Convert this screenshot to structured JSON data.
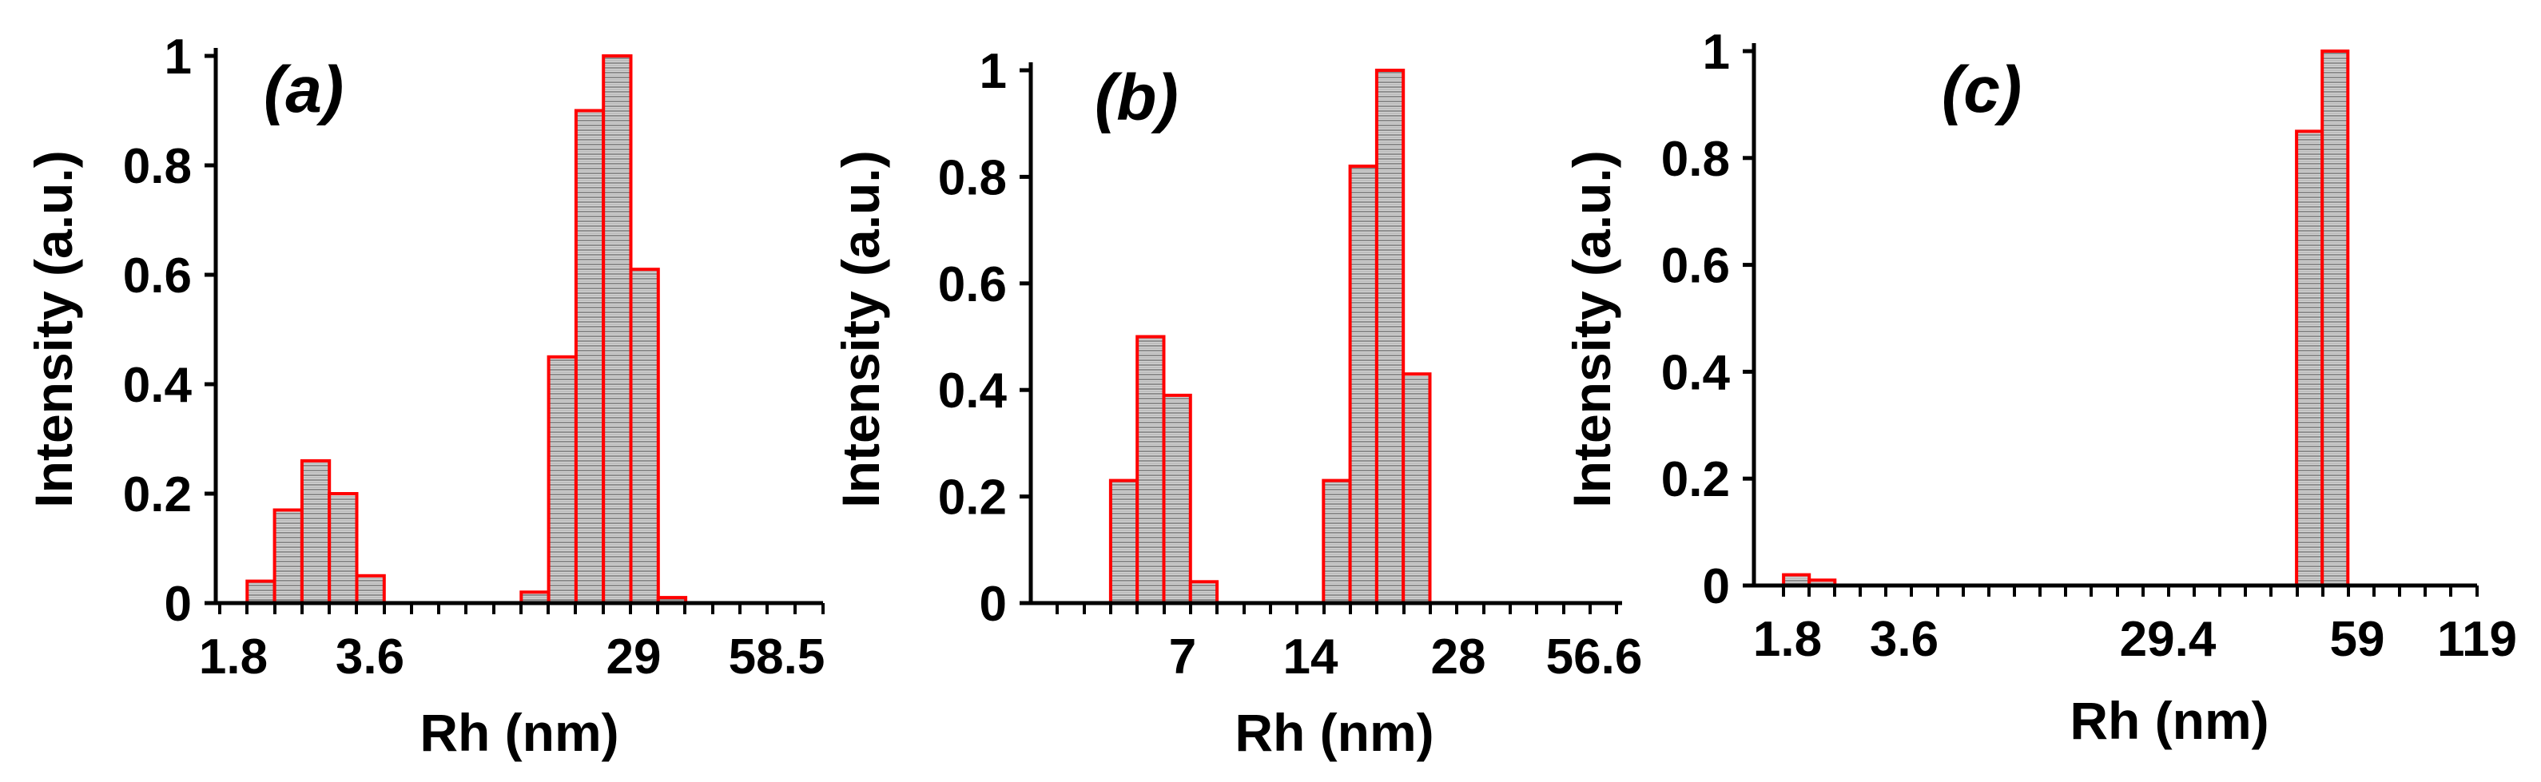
{
  "colors": {
    "bar_edge": "#ff0000",
    "bar_fill": "#cfcfcf",
    "bar_hatch": "#7a7a7a",
    "axis": "#000000",
    "text": "#000000"
  },
  "chart_data": [
    {
      "type": "bar",
      "panel_label": "(a)",
      "xlabel": "Rh (nm)",
      "ylabel": "Intensity (a.u.)",
      "ylim": [
        0,
        1
      ],
      "yticks": [
        "0",
        "0.2",
        "0.4",
        "0.6",
        "0.8",
        "1"
      ],
      "xtick_labels": [
        "1.8",
        "3.6",
        "29",
        "58.5"
      ],
      "bin_count": 20,
      "values": [
        0,
        0.04,
        0.17,
        0.26,
        0.2,
        0.05,
        0,
        0,
        0,
        0,
        0,
        0.02,
        0.45,
        0.9,
        1.0,
        0.61,
        0.01,
        0,
        0,
        0
      ]
    },
    {
      "type": "bar",
      "panel_label": "(b)",
      "xlabel": "Rh (nm)",
      "ylabel": "Intensity (a.u.)",
      "ylim": [
        0,
        1
      ],
      "yticks": [
        "0",
        "0.2",
        "0.4",
        "0.6",
        "0.8",
        "1"
      ],
      "xtick_labels": [
        "7",
        "14",
        "28",
        "56.6"
      ],
      "bin_count": 20,
      "values": [
        0,
        0,
        0,
        0.23,
        0.5,
        0.39,
        0.04,
        0,
        0,
        0,
        0,
        0.23,
        0.82,
        1.0,
        0.43,
        0,
        0,
        0,
        0,
        0
      ]
    },
    {
      "type": "bar",
      "panel_label": "(c)",
      "xlabel": "Rh (nm)",
      "ylabel": "Intensity (a.u.)",
      "ylim": [
        0,
        1
      ],
      "yticks": [
        "0",
        "0.2",
        "0.4",
        "0.6",
        "0.8",
        "1"
      ],
      "xtick_labels": [
        "1.8",
        "3.6",
        "29.4",
        "59",
        "119"
      ],
      "bin_count": 28,
      "values": [
        0,
        0.02,
        0.01,
        0,
        0,
        0,
        0,
        0,
        0,
        0,
        0,
        0,
        0,
        0,
        0,
        0,
        0,
        0,
        0,
        0,
        0,
        0.85,
        1.0,
        0,
        0,
        0,
        0,
        0
      ]
    }
  ]
}
